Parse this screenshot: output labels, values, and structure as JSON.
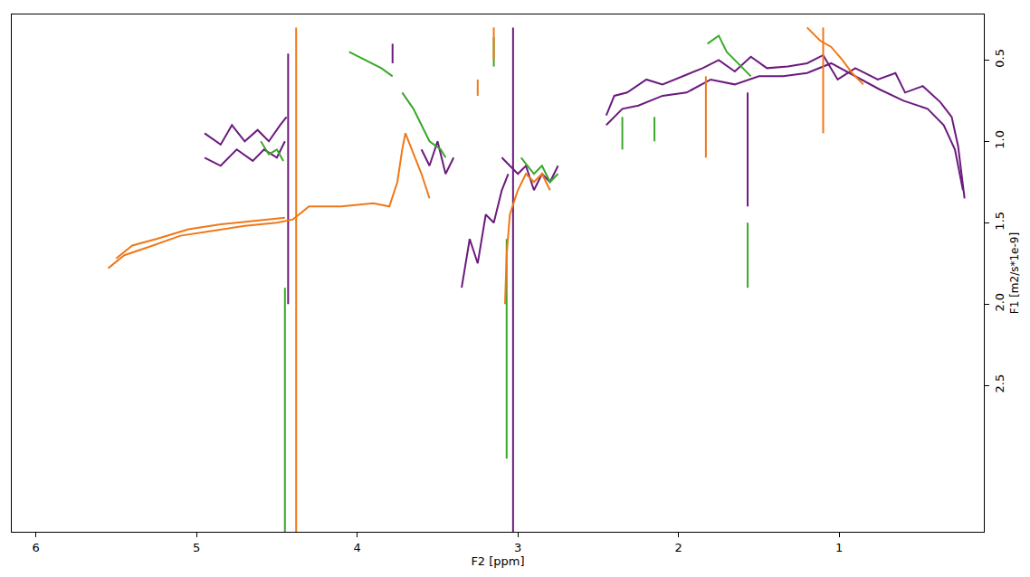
{
  "chart_data": {
    "type": "line",
    "x_label": "F2 [ppm]",
    "y_label": "F1 [m2/s*1e-9]",
    "xlim": [
      6.15,
      0.1
    ],
    "ylim": [
      3.4,
      0.22
    ],
    "xticks": [
      6,
      5,
      4,
      3,
      2,
      1
    ],
    "yticks": [
      0.5,
      {
        "value": 1.0,
        "label": "1.0"
      },
      1.5,
      {
        "value": 2.0,
        "label": "2.0"
      },
      2.5
    ],
    "grid": false,
    "series": [
      {
        "color": "#6b1a7e",
        "x": [
          4.95,
          4.85,
          4.78,
          4.7,
          4.62,
          4.55,
          4.48,
          4.44,
          null,
          4.43,
          4.43,
          null,
          4.95,
          4.85,
          4.75,
          4.65,
          4.58,
          4.5,
          4.45,
          null,
          3.78,
          3.78,
          null,
          3.6,
          3.55,
          3.5,
          3.45,
          3.4,
          null,
          3.03,
          3.03,
          null,
          3.35,
          3.3,
          3.25,
          3.2,
          3.15,
          3.1,
          3.06,
          null,
          3.1,
          3.0,
          2.95,
          2.9,
          2.85,
          2.8,
          2.75,
          null,
          2.45,
          2.4,
          2.32,
          2.2,
          2.1,
          1.98,
          1.85,
          1.75,
          1.65,
          1.55,
          1.45,
          1.32,
          1.2,
          1.1,
          1.01,
          0.9,
          0.76,
          0.65,
          0.59,
          0.48,
          0.37,
          0.3,
          0.26,
          0.22,
          null,
          2.45,
          2.35,
          2.25,
          2.1,
          1.95,
          1.8,
          1.65,
          1.5,
          1.35,
          1.2,
          1.05,
          0.9,
          0.75,
          0.6,
          0.45,
          0.35,
          0.28,
          0.23,
          null,
          1.57,
          1.57
        ],
        "y": [
          0.95,
          1.02,
          0.9,
          1.0,
          0.93,
          1.0,
          0.9,
          0.85,
          null,
          0.46,
          2.0,
          null,
          1.1,
          1.15,
          1.05,
          1.12,
          1.05,
          1.1,
          1.0,
          null,
          0.4,
          0.52,
          null,
          1.05,
          1.15,
          1.0,
          1.2,
          1.1,
          null,
          0.3,
          3.4,
          null,
          1.9,
          1.6,
          1.75,
          1.45,
          1.5,
          1.3,
          1.2,
          null,
          1.1,
          1.2,
          1.15,
          1.3,
          1.2,
          1.25,
          1.15,
          null,
          0.84,
          0.72,
          0.7,
          0.62,
          0.65,
          0.6,
          0.55,
          0.5,
          0.57,
          0.48,
          0.55,
          0.54,
          0.52,
          0.47,
          0.62,
          0.55,
          0.62,
          0.58,
          0.7,
          0.66,
          0.76,
          0.85,
          1.03,
          1.35,
          null,
          0.9,
          0.8,
          0.78,
          0.72,
          0.7,
          0.62,
          0.65,
          0.6,
          0.6,
          0.58,
          0.52,
          0.6,
          0.68,
          0.75,
          0.8,
          0.9,
          1.05,
          1.3,
          null,
          0.7,
          1.4
        ]
      },
      {
        "color": "#3aa82a",
        "x": [
          4.6,
          4.55,
          4.5,
          4.46,
          null,
          4.45,
          4.45,
          null,
          4.05,
          3.95,
          3.85,
          3.78,
          null,
          3.72,
          3.65,
          3.6,
          3.55,
          3.48,
          3.45,
          null,
          3.15,
          3.15,
          null,
          3.07,
          3.07,
          null,
          2.98,
          2.9,
          2.85,
          2.8,
          2.75,
          null,
          2.35,
          2.35,
          null,
          2.15,
          2.15,
          null,
          1.57,
          1.57,
          null,
          1.82,
          1.75,
          1.7,
          1.65,
          1.6,
          1.55
        ],
        "y": [
          1.0,
          1.08,
          1.05,
          1.12,
          null,
          1.9,
          3.4,
          null,
          0.45,
          0.5,
          0.55,
          0.6,
          null,
          0.7,
          0.8,
          0.9,
          1.0,
          1.05,
          1.1,
          null,
          0.36,
          0.54,
          null,
          1.6,
          2.95,
          null,
          1.1,
          1.2,
          1.15,
          1.25,
          1.2,
          null,
          0.85,
          1.05,
          null,
          0.85,
          1.0,
          null,
          1.5,
          1.9,
          null,
          0.4,
          0.35,
          0.45,
          0.5,
          0.55,
          0.6
        ]
      },
      {
        "color": "#f07818",
        "x": [
          5.55,
          5.45,
          5.3,
          5.1,
          4.9,
          4.7,
          4.5,
          4.4,
          4.3,
          4.1,
          3.9,
          3.8,
          3.75,
          3.72,
          3.7,
          3.66,
          3.6,
          3.55,
          null,
          5.5,
          5.4,
          5.25,
          5.05,
          4.85,
          4.65,
          4.45,
          null,
          4.38,
          4.38,
          null,
          3.08,
          3.07,
          3.05,
          3.0,
          2.95,
          2.9,
          2.85,
          2.8,
          null,
          3.15,
          3.15,
          null,
          3.25,
          3.25,
          null,
          1.83,
          1.83,
          null,
          1.1,
          1.1,
          null,
          1.2,
          1.12,
          1.05,
          0.98,
          0.92,
          0.85
        ],
        "y": [
          1.78,
          1.7,
          1.65,
          1.58,
          1.55,
          1.52,
          1.5,
          1.48,
          1.4,
          1.4,
          1.38,
          1.4,
          1.25,
          1.05,
          0.95,
          1.05,
          1.2,
          1.35,
          null,
          1.72,
          1.64,
          1.6,
          1.54,
          1.51,
          1.49,
          1.47,
          null,
          0.3,
          3.4,
          null,
          2.0,
          1.7,
          1.45,
          1.3,
          1.2,
          1.25,
          1.2,
          1.3,
          null,
          0.3,
          0.5,
          null,
          0.62,
          0.72,
          null,
          0.6,
          1.1,
          null,
          0.3,
          0.95,
          null,
          0.3,
          0.38,
          0.42,
          0.5,
          0.58,
          0.65
        ]
      }
    ]
  }
}
